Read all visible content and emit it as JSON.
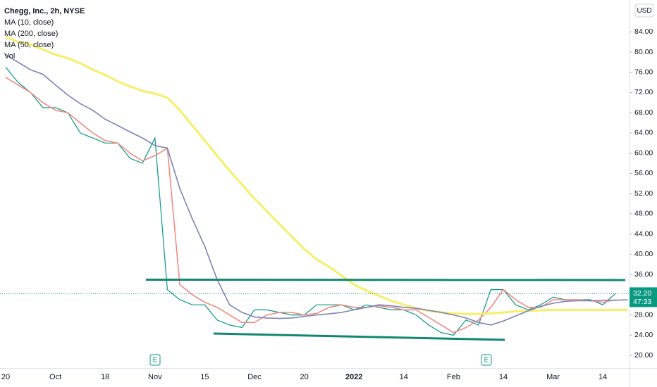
{
  "chart_data": {
    "type": "line",
    "title": "Chegg, Inc., 2h, NYSE",
    "volume_label": "Vol",
    "currency": "USD",
    "last_price": {
      "value": 32.2,
      "label": "32.20"
    },
    "countdown": "47:33",
    "earnings_markers": [
      "E",
      "E"
    ],
    "categories": [
      "20",
      null,
      null,
      null,
      "Oct",
      null,
      null,
      null,
      "18",
      null,
      null,
      null,
      "Nov",
      null,
      null,
      null,
      "15",
      null,
      null,
      null,
      "Dec",
      null,
      null,
      null,
      "20",
      null,
      null,
      null,
      "2022",
      null,
      null,
      null,
      "14",
      null,
      null,
      null,
      "Feb",
      null,
      null,
      null,
      "14",
      null,
      null,
      null,
      "Mar",
      null,
      null,
      null,
      "14",
      null,
      null
    ],
    "series": [
      {
        "name": "Chegg, Inc., 2h, NYSE",
        "color": "#089981",
        "values": [
          77,
          74,
          72,
          69,
          69,
          68,
          64,
          63,
          62,
          62,
          59,
          58,
          63,
          33,
          31,
          30,
          30,
          27,
          26,
          25.5,
          29,
          29,
          28.5,
          28,
          28,
          30,
          30,
          30,
          29,
          30,
          29.5,
          29,
          29,
          28,
          26,
          24.5,
          24,
          27,
          26,
          33,
          33,
          30,
          29,
          30,
          31.5,
          31,
          31,
          31,
          30,
          32.2,
          null
        ]
      },
      {
        "name": "MA (10, close)",
        "color": "#f28b82",
        "values": [
          75,
          73.5,
          72,
          70,
          68.5,
          68,
          66,
          64,
          62.5,
          62,
          60,
          58.5,
          59.5,
          61,
          34,
          32,
          30.5,
          29.5,
          28,
          26.5,
          26.5,
          28,
          28.5,
          28.5,
          28,
          28.3,
          29.5,
          30,
          29.5,
          29.5,
          29.8,
          29.5,
          29,
          29,
          27.5,
          26,
          24.5,
          25.5,
          27,
          29.5,
          33,
          31,
          29.5,
          29.5,
          31,
          31,
          31,
          30.8,
          30.5,
          31,
          null
        ]
      },
      {
        "name": "MA (200, close)",
        "color": "#f7ee6a",
        "values": [
          83,
          82,
          81.5,
          80.5,
          79.5,
          78.8,
          77.8,
          76.5,
          75.5,
          74.2,
          73.2,
          72.3,
          71.8,
          71,
          68.5,
          65.5,
          62.5,
          59.5,
          56.5,
          53.8,
          51,
          48.5,
          46,
          43.5,
          41,
          39,
          37.5,
          35.8,
          34,
          32.8,
          31.8,
          30.8,
          30,
          29.3,
          28.8,
          28.5,
          28.3,
          28.2,
          28.2,
          28.3,
          28.5,
          28.7,
          28.8,
          28.9,
          29,
          29,
          29,
          29,
          29,
          29,
          29
        ]
      },
      {
        "name": "MA (50, close)",
        "color": "#7e82b8",
        "values": [
          79.5,
          78,
          76.5,
          75.6,
          73.5,
          71.5,
          69.8,
          68.5,
          66.7,
          65.5,
          64.2,
          63,
          61.5,
          61,
          53,
          47,
          41.6,
          35,
          30,
          28.5,
          27.6,
          27.4,
          27.3,
          27.4,
          27.7,
          28,
          28.2,
          28.5,
          29,
          29.5,
          30,
          29.8,
          29.5,
          29.3,
          28.9,
          28.5,
          28,
          27.4,
          26.5,
          26,
          26.8,
          27.8,
          28.8,
          29.7,
          30.3,
          30.7,
          30.8,
          30.8,
          30.9,
          30.9,
          31
        ]
      }
    ],
    "ylim": [
      17.5,
      90.3
    ],
    "yticks": [
      {
        "value": 20,
        "label": "20.00"
      },
      {
        "value": 24,
        "label": "24.00"
      },
      {
        "value": 28,
        "label": "28.00"
      },
      {
        "value": 32,
        "label": "32.00"
      },
      {
        "value": 36,
        "label": "36.00"
      },
      {
        "value": 40,
        "label": "40.00"
      },
      {
        "value": 44,
        "label": "44.00"
      },
      {
        "value": 48,
        "label": "48.00"
      },
      {
        "value": 52,
        "label": "52.00"
      },
      {
        "value": 56,
        "label": "56.00"
      },
      {
        "value": 60,
        "label": "60.00"
      },
      {
        "value": 64,
        "label": "64.00"
      },
      {
        "value": 68,
        "label": "68.00"
      },
      {
        "value": 72,
        "label": "72.00"
      },
      {
        "value": 76,
        "label": "76.00"
      },
      {
        "value": 80,
        "label": "80.00"
      },
      {
        "value": 84,
        "label": "84.00"
      }
    ]
  }
}
